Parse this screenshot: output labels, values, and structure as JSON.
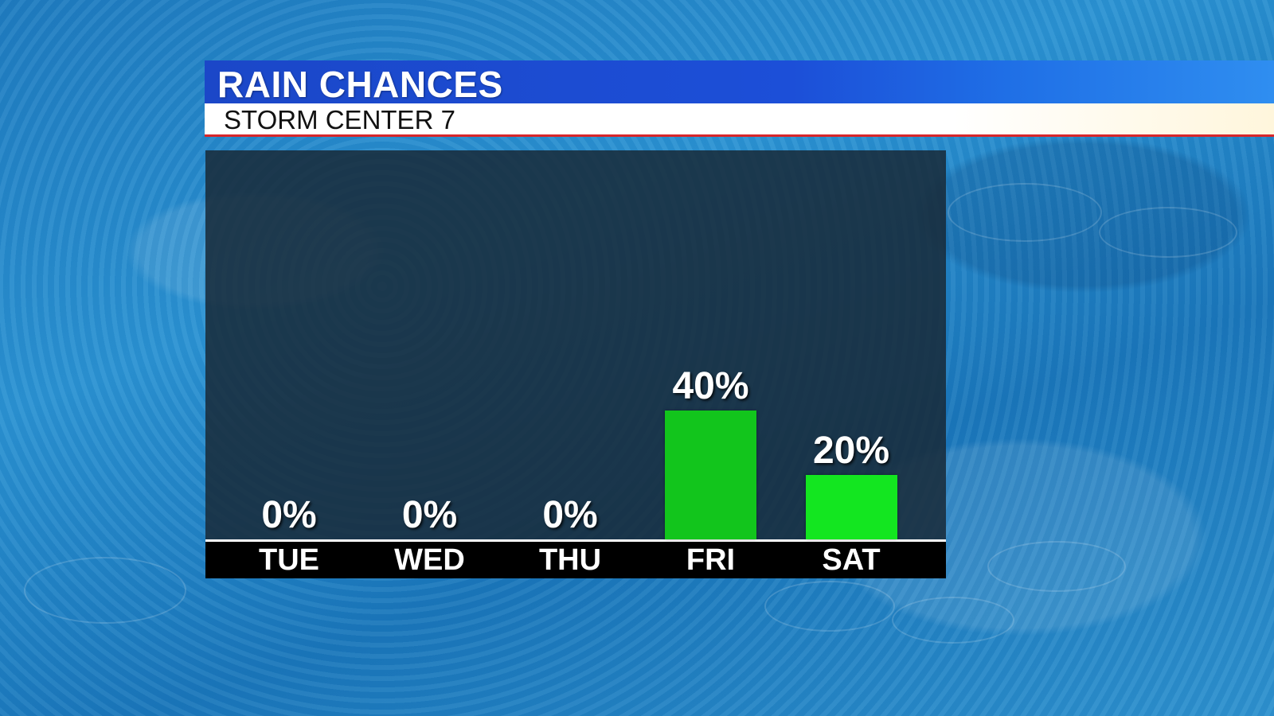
{
  "header": {
    "title": "RAIN CHANCES",
    "subtitle": "STORM CENTER 7"
  },
  "colors": {
    "header_blue": "#1c4fd8",
    "accent_red": "#d8262a",
    "bar_green": "#12c51c",
    "bar_green_light": "#13e620"
  },
  "chart_data": {
    "type": "bar",
    "categories": [
      "TUE",
      "WED",
      "THU",
      "FRI",
      "SAT"
    ],
    "values": [
      0,
      0,
      0,
      40,
      20
    ],
    "value_labels": [
      "0%",
      "0%",
      "0%",
      "40%",
      "20%"
    ],
    "bar_colors": [
      "#12c51c",
      "#12c51c",
      "#12c51c",
      "#12c51c",
      "#13e620"
    ],
    "title": "RAIN CHANCES",
    "subtitle": "STORM CENTER 7",
    "xlabel": "",
    "ylabel": "",
    "ylim": [
      0,
      100
    ],
    "grid": false,
    "legend": "none"
  }
}
